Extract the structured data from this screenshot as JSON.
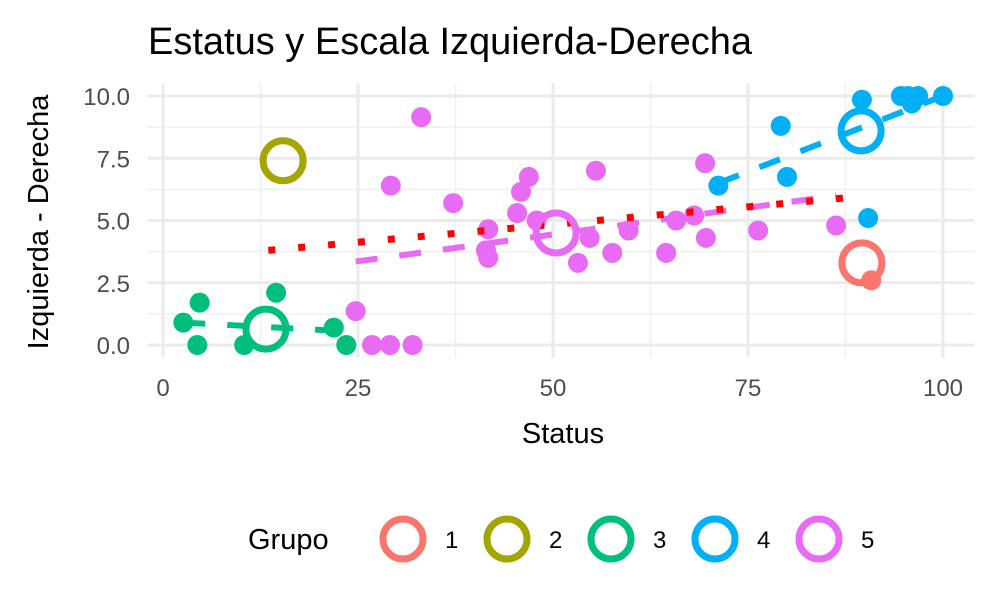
{
  "chart_data": {
    "type": "scatter",
    "title": "Estatus y Escala Izquierda-Derecha",
    "xlabel": "Status",
    "ylabel": "Izquierda - Derecha",
    "xlim": [
      -2,
      104
    ],
    "ylim": [
      -0.5,
      10.5
    ],
    "xticks": [
      0,
      25,
      50,
      75,
      100
    ],
    "xtick_labels": [
      "0",
      "25",
      "50",
      "75",
      "100"
    ],
    "yticks": [
      0,
      2.5,
      5,
      7.5,
      10
    ],
    "ytick_labels": [
      "0.0",
      "2.5",
      "5.0",
      "7.5",
      "10.0"
    ],
    "grid": true,
    "legend": {
      "title": "Grupo",
      "placement": "bottom"
    },
    "overall_trend": {
      "style": "dotted",
      "color": "#FF0000",
      "x": [
        13.5,
        89
      ],
      "y": [
        3.8,
        5.95
      ]
    },
    "series": [
      {
        "name": "1",
        "color": "#F8766D",
        "points": [
          [
            90.8,
            2.6
          ]
        ],
        "centroid": [
          89.6,
          3.3
        ],
        "trend": null
      },
      {
        "name": "2",
        "color": "#A3A500",
        "points": [],
        "centroid": [
          15.4,
          7.4
        ],
        "trend": null
      },
      {
        "name": "3",
        "color": "#00BF7D",
        "points": [
          [
            2.6,
            0.9
          ],
          [
            4.7,
            1.7
          ],
          [
            4.4,
            0
          ],
          [
            10.4,
            0
          ],
          [
            14.5,
            2.1
          ],
          [
            21.9,
            0.7
          ],
          [
            23.5,
            0
          ]
        ],
        "centroid": [
          13.2,
          0.64
        ],
        "trend": {
          "x": [
            2.6,
            23.5
          ],
          "y": [
            0.9,
            0.55
          ]
        }
      },
      {
        "name": "4",
        "color": "#00B0F6",
        "points": [
          [
            71.2,
            6.4
          ],
          [
            79.2,
            8.8
          ],
          [
            80,
            6.75
          ],
          [
            89.6,
            9.85
          ],
          [
            90.4,
            5.1
          ],
          [
            94.6,
            10
          ],
          [
            96,
            9.7
          ],
          [
            96.8,
            10
          ],
          [
            95.5,
            10
          ],
          [
            100,
            10
          ]
        ],
        "centroid": [
          89.5,
          8.6
        ],
        "trend": {
          "x": [
            71.2,
            100
          ],
          "y": [
            6.5,
            10
          ]
        }
      },
      {
        "name": "5",
        "color": "#E76BF3",
        "points": [
          [
            24.7,
            1.36
          ],
          [
            26.8,
            0
          ],
          [
            29.1,
            0
          ],
          [
            32,
            0
          ],
          [
            33.1,
            9.15
          ],
          [
            29.2,
            6.4
          ],
          [
            37.2,
            5.7
          ],
          [
            41.7,
            4.65
          ],
          [
            41.4,
            3.8
          ],
          [
            41.7,
            3.5
          ],
          [
            46.9,
            6.75
          ],
          [
            45.9,
            6.15
          ],
          [
            45.4,
            5.3
          ],
          [
            47.9,
            5.0
          ],
          [
            53.2,
            3.3
          ],
          [
            54.7,
            4.3
          ],
          [
            55.5,
            7.0
          ],
          [
            57.6,
            3.7
          ],
          [
            59.7,
            4.6
          ],
          [
            64.5,
            3.7
          ],
          [
            65.8,
            5.0
          ],
          [
            68.1,
            5.2
          ],
          [
            69.5,
            7.3
          ],
          [
            69.6,
            4.3
          ],
          [
            76.3,
            4.6
          ],
          [
            86.3,
            4.8
          ]
        ],
        "centroid": [
          50.4,
          4.5
        ],
        "trend": {
          "x": [
            24.7,
            86.3
          ],
          "y": [
            3.35,
            6.0
          ]
        }
      }
    ]
  }
}
